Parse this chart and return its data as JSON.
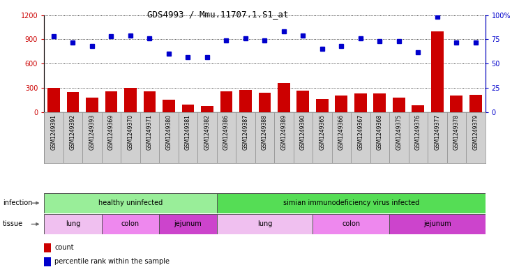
{
  "title": "GDS4993 / Mmu.11707.1.S1_at",
  "samples": [
    "GSM1249391",
    "GSM1249392",
    "GSM1249393",
    "GSM1249369",
    "GSM1249370",
    "GSM1249371",
    "GSM1249380",
    "GSM1249381",
    "GSM1249382",
    "GSM1249386",
    "GSM1249387",
    "GSM1249388",
    "GSM1249389",
    "GSM1249390",
    "GSM1249365",
    "GSM1249366",
    "GSM1249367",
    "GSM1249368",
    "GSM1249375",
    "GSM1249376",
    "GSM1249377",
    "GSM1249378",
    "GSM1249379"
  ],
  "counts": [
    305,
    250,
    185,
    260,
    305,
    255,
    155,
    95,
    80,
    255,
    275,
    240,
    360,
    265,
    165,
    210,
    235,
    230,
    185,
    90,
    1000,
    210,
    215
  ],
  "percentiles": [
    78,
    72,
    68,
    78,
    79,
    76,
    60,
    57,
    57,
    74,
    76,
    74,
    83,
    79,
    65,
    68,
    76,
    73,
    73,
    62,
    98,
    72,
    72
  ],
  "ylim_left": [
    0,
    1200
  ],
  "ylim_right": [
    0,
    100
  ],
  "yticks_left": [
    0,
    300,
    600,
    900,
    1200
  ],
  "yticks_right": [
    0,
    25,
    50,
    75,
    100
  ],
  "bar_color": "#cc0000",
  "dot_color": "#0000cc",
  "infection_groups": [
    {
      "label": "healthy uninfected",
      "start": 0,
      "end": 9,
      "color": "#99ee99"
    },
    {
      "label": "simian immunodeficiency virus infected",
      "start": 9,
      "end": 23,
      "color": "#55dd55"
    }
  ],
  "tissue_groups": [
    {
      "label": "lung",
      "start": 0,
      "end": 3,
      "color": "#f0c0f0"
    },
    {
      "label": "colon",
      "start": 3,
      "end": 6,
      "color": "#ee88ee"
    },
    {
      "label": "jejunum",
      "start": 6,
      "end": 9,
      "color": "#cc44cc"
    },
    {
      "label": "lung",
      "start": 9,
      "end": 14,
      "color": "#f0c0f0"
    },
    {
      "label": "colon",
      "start": 14,
      "end": 18,
      "color": "#ee88ee"
    },
    {
      "label": "jejunum",
      "start": 18,
      "end": 23,
      "color": "#cc44cc"
    }
  ],
  "legend_count_label": "count",
  "legend_percentile_label": "percentile rank within the sample",
  "infection_label": "infection",
  "tissue_label": "tissue",
  "bg_color": "#d0d0d0",
  "grid_color": "#000000",
  "title_fontsize": 9,
  "tick_fontsize": 7,
  "label_fontsize": 7,
  "sample_fontsize": 5.5
}
